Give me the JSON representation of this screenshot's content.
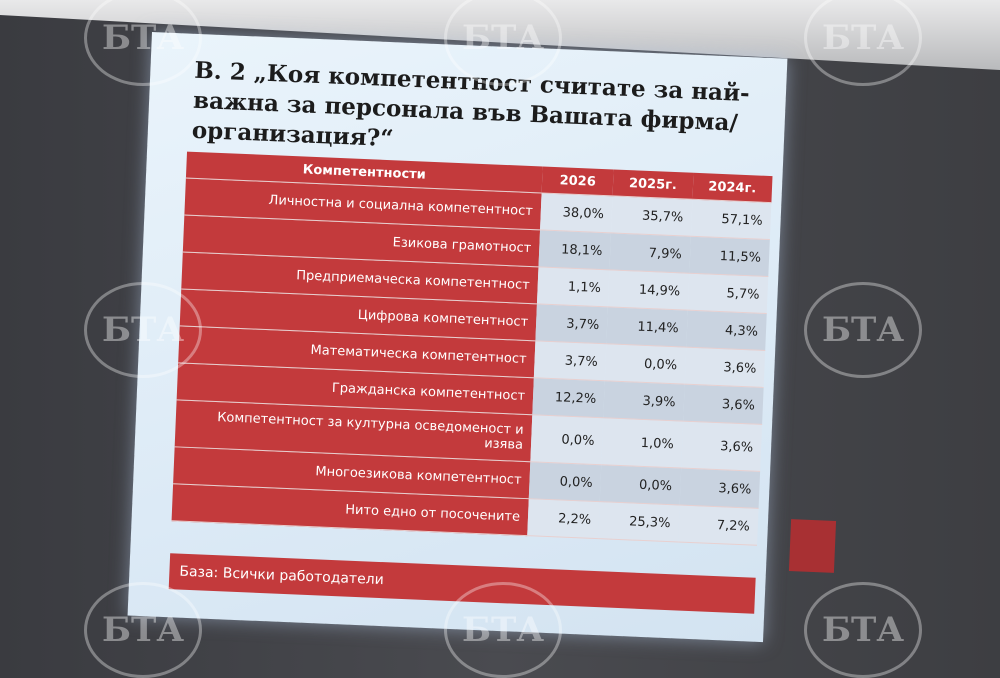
{
  "slide": {
    "title": "В. 2 „Коя компетентност считате за най-важна за персонала във Вашата фирма/организация?“",
    "table": {
      "header": [
        "Компетентности",
        "2026",
        "2025г.",
        "2024г."
      ],
      "rows": [
        [
          "Личностна и социална компетентност",
          "38,0%",
          "35,7%",
          "57,1%"
        ],
        [
          "Езикова грамотност",
          "18,1%",
          "7,9%",
          "11,5%"
        ],
        [
          "Предприемаческа компетентност",
          "1,1%",
          "14,9%",
          "5,7%"
        ],
        [
          "Цифрова компетентност",
          "3,7%",
          "11,4%",
          "4,3%"
        ],
        [
          "Математическа компетентност",
          "3,7%",
          "0,0%",
          "3,6%"
        ],
        [
          "Гражданска компетентност",
          "12,2%",
          "3,9%",
          "3,6%"
        ],
        [
          "Компетентност за културна осведоменост и изява",
          "0,0%",
          "1,0%",
          "3,6%"
        ],
        [
          "Многоезикова компетентност",
          "0,0%",
          "0,0%",
          "3,6%"
        ],
        [
          "Нито едно от посочените",
          "2,2%",
          "25,3%",
          "7,2%"
        ]
      ]
    },
    "footer": "База: Всички работодатели"
  },
  "watermark": {
    "text": "БТА"
  }
}
